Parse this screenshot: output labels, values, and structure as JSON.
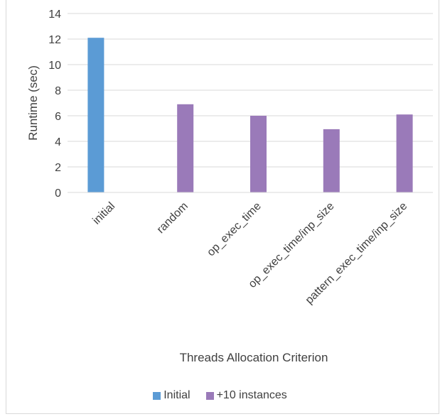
{
  "chart_data": {
    "type": "bar",
    "title": "",
    "xlabel": "Threads Allocation Criterion",
    "ylabel": "Runtime (sec)",
    "ylim": [
      0,
      14
    ],
    "yticks": [
      0,
      2,
      4,
      6,
      8,
      10,
      12,
      14
    ],
    "grid": true,
    "legend_position": "bottom",
    "categories": [
      "initial",
      "random",
      "op_exec_time",
      "op_exec_time/inp_size",
      "pattern_exec_time/inp_size"
    ],
    "series": [
      {
        "name": "Initial",
        "color": "#5b9bd5",
        "values": [
          12.1,
          null,
          null,
          null,
          null
        ]
      },
      {
        "name": "+10 instances",
        "color": "#9a7ab9",
        "values": [
          null,
          6.9,
          6.0,
          4.95,
          6.1
        ]
      }
    ]
  }
}
